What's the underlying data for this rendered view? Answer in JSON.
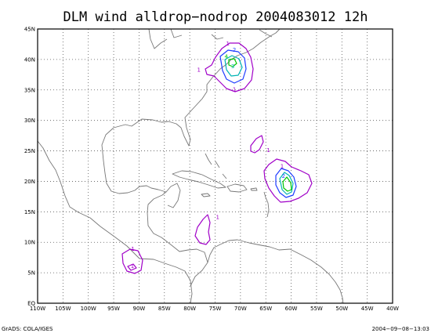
{
  "title": "DLM wind alldrop−nodrop 2004083012 12h",
  "footer_left": "GrADS: COLA/IGES",
  "footer_right": "2004−09−08−13:03",
  "map": {
    "lon_range": [
      -110,
      -40
    ],
    "lat_range": [
      0,
      45
    ],
    "x_ticks": [
      "110W",
      "105W",
      "100W",
      "95W",
      "90W",
      "85W",
      "80W",
      "75W",
      "70W",
      "65W",
      "60W",
      "55W",
      "50W",
      "45W",
      "40W"
    ],
    "y_ticks": [
      "EQ",
      "5N",
      "10N",
      "15N",
      "20N",
      "25N",
      "30N",
      "35N",
      "40N",
      "45N"
    ],
    "grid": "dotted"
  },
  "contour_levels": [
    {
      "value": "1",
      "color": "#a000c8"
    },
    {
      "value": "2",
      "color": "#1e3cff"
    },
    {
      "value": "3",
      "color": "#00b4b4"
    },
    {
      "value": "4",
      "color": "#00c800"
    }
  ],
  "contour_labels": [
    {
      "text": "1",
      "lon": -72.5,
      "lat": 42.3,
      "color": "#a000c8"
    },
    {
      "text": "2",
      "lon": -71.2,
      "lat": 41.3,
      "color": "#1e3cff"
    },
    {
      "text": "4",
      "lon": -72.8,
      "lat": 40.2,
      "color": "#00c800"
    },
    {
      "text": "3",
      "lon": -71.5,
      "lat": 38.6,
      "color": "#00b4b4"
    },
    {
      "text": "1",
      "lon": -78.2,
      "lat": 38.0,
      "color": "#a000c8"
    },
    {
      "text": "1",
      "lon": -71.2,
      "lat": 34.8,
      "color": "#a000c8"
    },
    {
      "text": "1",
      "lon": -64.5,
      "lat": 24.8,
      "color": "#a000c8"
    },
    {
      "text": "1",
      "lon": -61.8,
      "lat": 22.2,
      "color": "#a000c8"
    },
    {
      "text": "2",
      "lon": -61.5,
      "lat": 20.6,
      "color": "#1e3cff"
    },
    {
      "text": "1",
      "lon": -74.5,
      "lat": 13.8,
      "color": "#a000c8"
    },
    {
      "text": "1",
      "lon": -91.2,
      "lat": 8.6,
      "color": "#a000c8"
    },
    {
      "text": "1",
      "lon": -91.3,
      "lat": 5.8,
      "color": "#a000c8"
    }
  ]
}
